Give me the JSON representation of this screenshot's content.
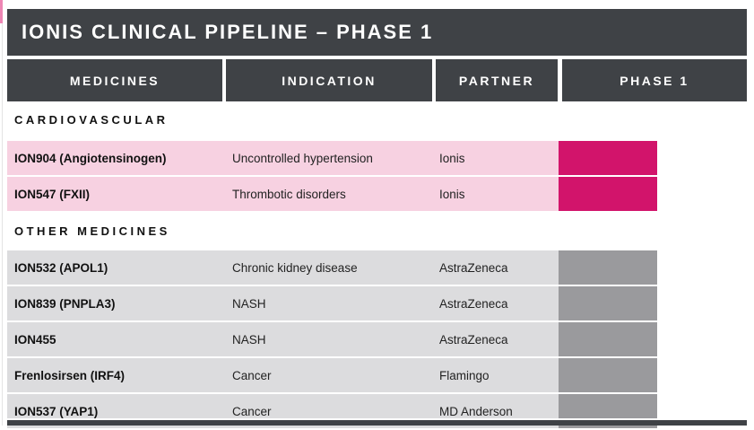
{
  "title": "IONIS CLINICAL PIPELINE – PHASE 1",
  "columns": [
    "MEDICINES",
    "INDICATION",
    "PARTNER",
    "PHASE 1"
  ],
  "colors": {
    "header_bg": "#3F4246",
    "cardiovascular_row_bg": "#F7D1E1",
    "cardiovascular_phase_bar": "#D2146B",
    "other_row_bg": "#DCDCDE",
    "other_phase_bar": "#9A9A9D",
    "accent_pink": "#EE86B4"
  },
  "sections": [
    {
      "label": "CARDIOVASCULAR",
      "rows": [
        {
          "medicine": "ION904 (Angiotensinogen)",
          "indication": "Uncontrolled hypertension",
          "partner": "Ionis"
        },
        {
          "medicine": "ION547 (FXII)",
          "indication": "Thrombotic disorders",
          "partner": "Ionis"
        }
      ]
    },
    {
      "label": "OTHER MEDICINES",
      "rows": [
        {
          "medicine": "ION532 (APOL1)",
          "indication": "Chronic kidney disease",
          "partner": "AstraZeneca"
        },
        {
          "medicine": "ION839 (PNPLA3)",
          "indication": "NASH",
          "partner": "AstraZeneca"
        },
        {
          "medicine": "ION455",
          "indication": "NASH",
          "partner": "AstraZeneca"
        },
        {
          "medicine": "Frenlosirsen (IRF4)",
          "indication": "Cancer",
          "partner": "Flamingo"
        },
        {
          "medicine": "ION537 (YAP1)",
          "indication": "Cancer",
          "partner": "MD Anderson"
        }
      ]
    }
  ]
}
